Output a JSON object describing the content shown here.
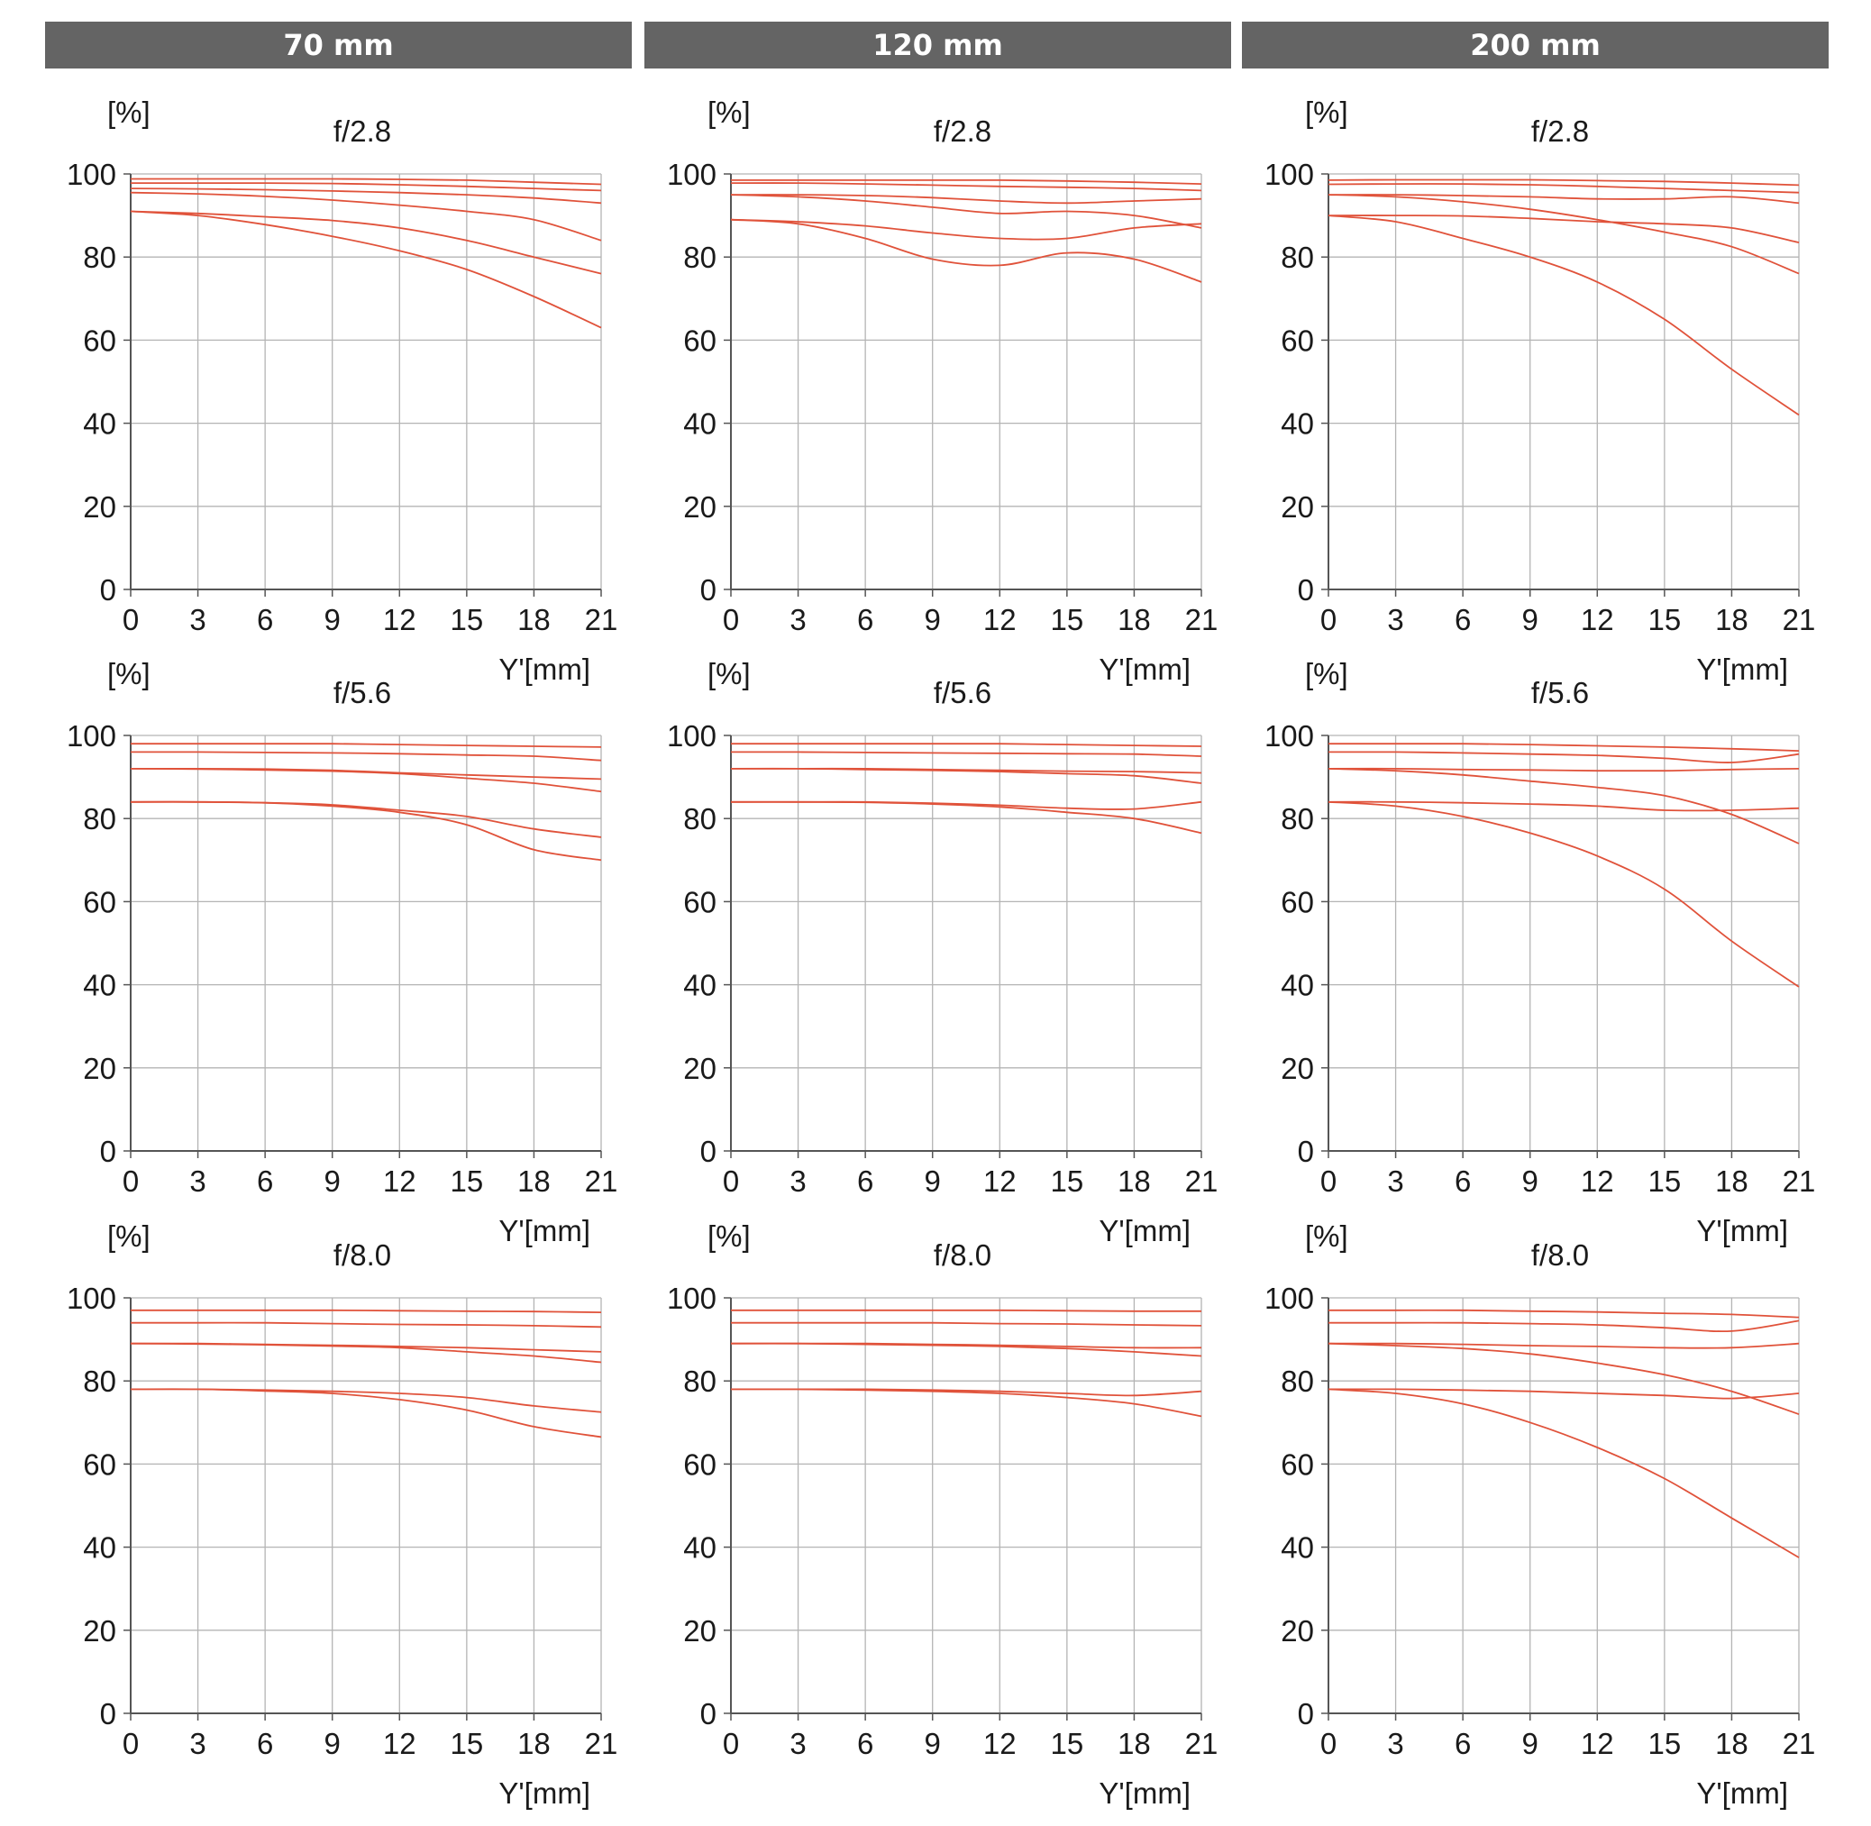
{
  "headers": [
    "70 mm",
    "120 mm",
    "200 mm"
  ],
  "chart_data": [
    {
      "type": "line",
      "focal": "70 mm",
      "title": "f/2.8",
      "ylabel": "[%]",
      "xlabel": "Y'[mm]",
      "xlim": [
        0,
        21
      ],
      "ylim": [
        0,
        100
      ],
      "xticks": [
        "0",
        "3",
        "6",
        "9",
        "12",
        "15",
        "18",
        "21"
      ],
      "yticks": [
        "0",
        "20",
        "40",
        "60",
        "80",
        "100"
      ],
      "grid": true,
      "x": [
        0,
        3,
        6,
        9,
        12,
        15,
        18,
        21
      ],
      "line_color": "#e0523a",
      "series": [
        {
          "values": [
            98.8,
            98.8,
            98.8,
            98.8,
            98.7,
            98.5,
            98.0,
            97.5
          ]
        },
        {
          "values": [
            97.8,
            97.8,
            97.8,
            97.7,
            97.4,
            97.0,
            96.5,
            96.0
          ]
        },
        {
          "values": [
            96.5,
            96.4,
            96.2,
            95.9,
            95.5,
            95.0,
            94.2,
            93.0
          ]
        },
        {
          "values": [
            95.5,
            95.2,
            94.6,
            93.7,
            92.5,
            91.0,
            89.0,
            84.0
          ]
        },
        {
          "values": [
            91.0,
            90.5,
            89.7,
            88.8,
            87.0,
            84.0,
            80.0,
            76.0
          ]
        },
        {
          "values": [
            91.0,
            90.0,
            87.8,
            85.0,
            81.5,
            77.0,
            70.5,
            63.0
          ]
        }
      ]
    },
    {
      "type": "line",
      "focal": "120 mm",
      "title": "f/2.8",
      "ylabel": "[%]",
      "xlabel": "Y'[mm]",
      "xlim": [
        0,
        21
      ],
      "ylim": [
        0,
        100
      ],
      "xticks": [
        "0",
        "3",
        "6",
        "9",
        "12",
        "15",
        "18",
        "21"
      ],
      "yticks": [
        "0",
        "20",
        "40",
        "60",
        "80",
        "100"
      ],
      "grid": true,
      "x": [
        0,
        3,
        6,
        9,
        12,
        15,
        18,
        21
      ],
      "line_color": "#e0523a",
      "series": [
        {
          "values": [
            98.5,
            98.5,
            98.5,
            98.5,
            98.5,
            98.3,
            98.0,
            97.6
          ]
        },
        {
          "values": [
            97.8,
            97.8,
            97.6,
            97.3,
            97.0,
            96.8,
            96.5,
            96.0
          ]
        },
        {
          "values": [
            95.0,
            95.0,
            94.8,
            94.3,
            93.5,
            93.0,
            93.5,
            94.0
          ]
        },
        {
          "values": [
            95.0,
            94.5,
            93.5,
            92.0,
            90.5,
            91.0,
            90.0,
            87.0
          ]
        },
        {
          "values": [
            89.0,
            88.5,
            87.5,
            85.8,
            84.5,
            84.5,
            87.0,
            88.0
          ]
        },
        {
          "values": [
            89.0,
            88.0,
            84.5,
            79.5,
            78.0,
            81.0,
            79.5,
            74.0
          ]
        }
      ]
    },
    {
      "type": "line",
      "focal": "200 mm",
      "title": "f/2.8",
      "ylabel": "[%]",
      "xlabel": "Y'[mm]",
      "xlim": [
        0,
        21
      ],
      "ylim": [
        0,
        100
      ],
      "xticks": [
        "0",
        "3",
        "6",
        "9",
        "12",
        "15",
        "18",
        "21"
      ],
      "yticks": [
        "0",
        "20",
        "40",
        "60",
        "80",
        "100"
      ],
      "grid": true,
      "x": [
        0,
        3,
        6,
        9,
        12,
        15,
        18,
        21
      ],
      "line_color": "#e0523a",
      "series": [
        {
          "values": [
            98.5,
            98.6,
            98.6,
            98.6,
            98.4,
            98.2,
            97.8,
            97.3
          ]
        },
        {
          "values": [
            97.5,
            97.6,
            97.6,
            97.4,
            97.0,
            96.5,
            96.0,
            95.5
          ]
        },
        {
          "values": [
            95.0,
            95.0,
            94.8,
            94.5,
            94.0,
            94.0,
            94.5,
            93.0
          ]
        },
        {
          "values": [
            95.0,
            94.5,
            93.3,
            91.5,
            89.0,
            86.0,
            82.5,
            76.0
          ]
        },
        {
          "values": [
            90.0,
            90.0,
            89.9,
            89.3,
            88.5,
            88.0,
            87.0,
            83.5
          ]
        },
        {
          "values": [
            90.0,
            88.5,
            84.5,
            80.0,
            74.0,
            65.0,
            53.0,
            42.0
          ]
        }
      ]
    },
    {
      "type": "line",
      "focal": "70 mm",
      "title": "f/5.6",
      "ylabel": "[%]",
      "xlabel": "Y'[mm]",
      "xlim": [
        0,
        21
      ],
      "ylim": [
        0,
        100
      ],
      "xticks": [
        "0",
        "3",
        "6",
        "9",
        "12",
        "15",
        "18",
        "21"
      ],
      "yticks": [
        "0",
        "20",
        "40",
        "60",
        "80",
        "100"
      ],
      "grid": true,
      "x": [
        0,
        3,
        6,
        9,
        12,
        15,
        18,
        21
      ],
      "line_color": "#e0523a",
      "series": [
        {
          "values": [
            98.0,
            98.0,
            98.0,
            98.0,
            97.8,
            97.6,
            97.4,
            97.2
          ]
        },
        {
          "values": [
            96.0,
            96.0,
            95.9,
            95.8,
            95.6,
            95.3,
            95.0,
            94.0
          ]
        },
        {
          "values": [
            92.0,
            92.0,
            91.9,
            91.6,
            91.0,
            90.5,
            90.0,
            89.5
          ]
        },
        {
          "values": [
            92.0,
            91.9,
            91.7,
            91.4,
            90.8,
            89.7,
            88.5,
            86.5
          ]
        },
        {
          "values": [
            84.0,
            84.0,
            83.8,
            83.3,
            82.0,
            80.5,
            77.5,
            75.5
          ]
        },
        {
          "values": [
            84.0,
            84.0,
            83.8,
            83.0,
            81.5,
            78.5,
            72.5,
            70.0
          ]
        }
      ]
    },
    {
      "type": "line",
      "focal": "120 mm",
      "title": "f/5.6",
      "ylabel": "[%]",
      "xlabel": "Y'[mm]",
      "xlim": [
        0,
        21
      ],
      "ylim": [
        0,
        100
      ],
      "xticks": [
        "0",
        "3",
        "6",
        "9",
        "12",
        "15",
        "18",
        "21"
      ],
      "yticks": [
        "0",
        "20",
        "40",
        "60",
        "80",
        "100"
      ],
      "grid": true,
      "x": [
        0,
        3,
        6,
        9,
        12,
        15,
        18,
        21
      ],
      "line_color": "#e0523a",
      "series": [
        {
          "values": [
            98.0,
            98.0,
            98.0,
            98.0,
            98.0,
            97.8,
            97.6,
            97.4
          ]
        },
        {
          "values": [
            96.0,
            96.0,
            95.9,
            95.8,
            95.7,
            95.6,
            95.5,
            95.0
          ]
        },
        {
          "values": [
            92.0,
            92.0,
            92.0,
            91.8,
            91.6,
            91.4,
            91.3,
            91.0
          ]
        },
        {
          "values": [
            92.0,
            92.0,
            91.8,
            91.6,
            91.3,
            90.8,
            90.3,
            88.5
          ]
        },
        {
          "values": [
            84.0,
            84.0,
            84.0,
            83.7,
            83.2,
            82.5,
            82.3,
            84.0
          ]
        },
        {
          "values": [
            84.0,
            84.0,
            83.9,
            83.5,
            82.8,
            81.5,
            80.0,
            76.5
          ]
        }
      ]
    },
    {
      "type": "line",
      "focal": "200 mm",
      "title": "f/5.6",
      "ylabel": "[%]",
      "xlabel": "Y'[mm]",
      "xlim": [
        0,
        21
      ],
      "ylim": [
        0,
        100
      ],
      "xticks": [
        "0",
        "3",
        "6",
        "9",
        "12",
        "15",
        "18",
        "21"
      ],
      "yticks": [
        "0",
        "20",
        "40",
        "60",
        "80",
        "100"
      ],
      "grid": true,
      "x": [
        0,
        3,
        6,
        9,
        12,
        15,
        18,
        21
      ],
      "line_color": "#e0523a",
      "series": [
        {
          "values": [
            98.0,
            98.0,
            98.0,
            97.8,
            97.5,
            97.2,
            96.8,
            96.3
          ]
        },
        {
          "values": [
            96.0,
            96.0,
            95.8,
            95.5,
            95.2,
            94.5,
            93.5,
            95.5
          ]
        },
        {
          "values": [
            92.0,
            92.0,
            91.8,
            91.7,
            91.5,
            91.5,
            91.8,
            92.0
          ]
        },
        {
          "values": [
            92.0,
            91.5,
            90.5,
            89.0,
            87.5,
            85.5,
            81.0,
            74.0
          ]
        },
        {
          "values": [
            84.0,
            84.0,
            83.8,
            83.5,
            83.0,
            82.0,
            82.0,
            82.5
          ]
        },
        {
          "values": [
            84.0,
            83.0,
            80.5,
            76.5,
            71.0,
            63.0,
            50.5,
            39.5
          ]
        }
      ]
    },
    {
      "type": "line",
      "focal": "70 mm",
      "title": "f/8.0",
      "ylabel": "[%]",
      "xlabel": "Y'[mm]",
      "xlim": [
        0,
        21
      ],
      "ylim": [
        0,
        100
      ],
      "xticks": [
        "0",
        "3",
        "6",
        "9",
        "12",
        "15",
        "18",
        "21"
      ],
      "yticks": [
        "0",
        "20",
        "40",
        "60",
        "80",
        "100"
      ],
      "grid": true,
      "x": [
        0,
        3,
        6,
        9,
        12,
        15,
        18,
        21
      ],
      "line_color": "#e0523a",
      "series": [
        {
          "values": [
            97.0,
            97.0,
            97.0,
            97.0,
            96.9,
            96.8,
            96.7,
            96.5
          ]
        },
        {
          "values": [
            94.0,
            94.0,
            94.0,
            93.8,
            93.6,
            93.5,
            93.3,
            93.0
          ]
        },
        {
          "values": [
            89.0,
            89.0,
            88.8,
            88.6,
            88.3,
            88.0,
            87.5,
            87.0
          ]
        },
        {
          "values": [
            89.0,
            88.9,
            88.7,
            88.4,
            88.0,
            87.0,
            86.0,
            84.5
          ]
        },
        {
          "values": [
            78.0,
            78.0,
            77.8,
            77.5,
            77.0,
            76.0,
            74.0,
            72.5
          ]
        },
        {
          "values": [
            78.0,
            78.0,
            77.6,
            77.0,
            75.5,
            73.0,
            69.0,
            66.5
          ]
        }
      ]
    },
    {
      "type": "line",
      "focal": "120 mm",
      "title": "f/8.0",
      "ylabel": "[%]",
      "xlabel": "Y'[mm]",
      "xlim": [
        0,
        21
      ],
      "ylim": [
        0,
        100
      ],
      "xticks": [
        "0",
        "3",
        "6",
        "9",
        "12",
        "15",
        "18",
        "21"
      ],
      "yticks": [
        "0",
        "20",
        "40",
        "60",
        "80",
        "100"
      ],
      "grid": true,
      "x": [
        0,
        3,
        6,
        9,
        12,
        15,
        18,
        21
      ],
      "line_color": "#e0523a",
      "series": [
        {
          "values": [
            97.0,
            97.0,
            97.0,
            97.0,
            97.0,
            96.9,
            96.8,
            96.8
          ]
        },
        {
          "values": [
            94.0,
            94.0,
            94.0,
            94.0,
            93.8,
            93.7,
            93.5,
            93.3
          ]
        },
        {
          "values": [
            89.0,
            89.0,
            89.0,
            88.8,
            88.6,
            88.3,
            88.0,
            88.0
          ]
        },
        {
          "values": [
            89.0,
            89.0,
            88.8,
            88.6,
            88.3,
            87.8,
            87.0,
            86.0
          ]
        },
        {
          "values": [
            78.0,
            78.0,
            78.0,
            77.8,
            77.5,
            77.0,
            76.5,
            77.5
          ]
        },
        {
          "values": [
            78.0,
            78.0,
            77.8,
            77.5,
            77.0,
            76.0,
            74.5,
            71.5
          ]
        }
      ]
    },
    {
      "type": "line",
      "focal": "200 mm",
      "title": "f/8.0",
      "ylabel": "[%]",
      "xlabel": "Y'[mm]",
      "xlim": [
        0,
        21
      ],
      "ylim": [
        0,
        100
      ],
      "xticks": [
        "0",
        "3",
        "6",
        "9",
        "12",
        "15",
        "18",
        "21"
      ],
      "yticks": [
        "0",
        "20",
        "40",
        "60",
        "80",
        "100"
      ],
      "grid": true,
      "x": [
        0,
        3,
        6,
        9,
        12,
        15,
        18,
        21
      ],
      "line_color": "#e0523a",
      "series": [
        {
          "values": [
            97.0,
            97.0,
            97.0,
            96.8,
            96.6,
            96.3,
            96.0,
            95.3
          ]
        },
        {
          "values": [
            94.0,
            94.0,
            94.0,
            93.8,
            93.5,
            92.8,
            92.0,
            94.5
          ]
        },
        {
          "values": [
            89.0,
            89.0,
            88.8,
            88.5,
            88.3,
            88.0,
            88.0,
            89.0
          ]
        },
        {
          "values": [
            89.0,
            88.5,
            87.8,
            86.5,
            84.3,
            81.5,
            77.5,
            72.0
          ]
        },
        {
          "values": [
            78.0,
            78.0,
            77.8,
            77.5,
            77.0,
            76.5,
            75.8,
            77.0
          ]
        },
        {
          "values": [
            78.0,
            77.0,
            74.5,
            70.0,
            64.0,
            56.5,
            47.0,
            37.5
          ]
        }
      ]
    }
  ]
}
